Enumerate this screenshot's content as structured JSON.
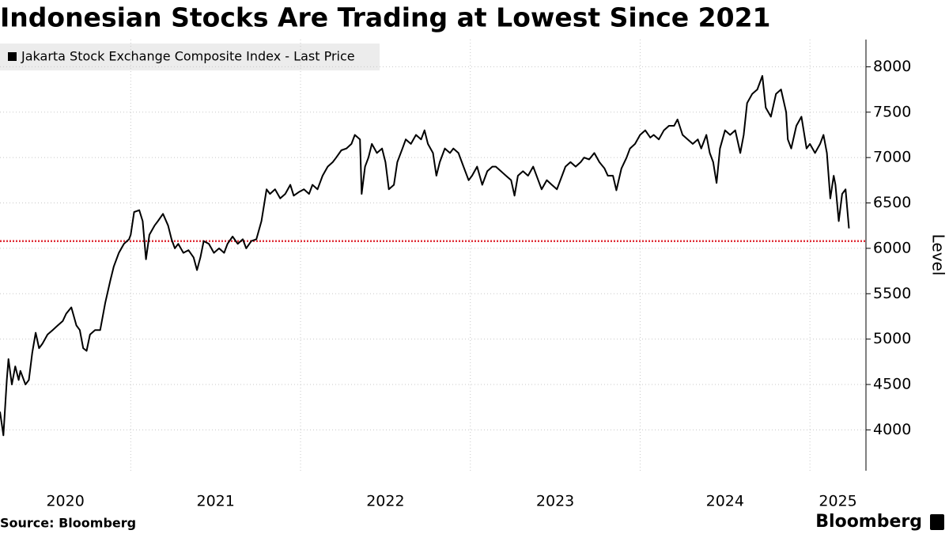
{
  "chart_data": {
    "type": "line",
    "title": "Indonesian Stocks Are Trading at Lowest Since 2021",
    "y_label": "Level",
    "source": "Source: Bloomberg",
    "logo": "Bloomberg",
    "x": [
      2020.23,
      2020.25,
      2020.27,
      2020.28,
      2020.3,
      2020.32,
      2020.34,
      2020.35,
      2020.38,
      2020.4,
      2020.42,
      2020.44,
      2020.46,
      2020.48,
      2020.51,
      2020.54,
      2020.57,
      2020.6,
      2020.62,
      2020.65,
      2020.68,
      2020.7,
      2020.72,
      2020.74,
      2020.76,
      2020.79,
      2020.82,
      2020.85,
      2020.88,
      2020.9,
      2020.93,
      2020.96,
      2020.99,
      2021.0,
      2021.02,
      2021.05,
      2021.07,
      2021.09,
      2021.11,
      2021.14,
      2021.16,
      2021.19,
      2021.22,
      2021.24,
      2021.26,
      2021.28,
      2021.31,
      2021.34,
      2021.37,
      2021.39,
      2021.41,
      2021.43,
      2021.46,
      2021.49,
      2021.52,
      2021.55,
      2021.57,
      2021.6,
      2021.63,
      2021.66,
      2021.68,
      2021.71,
      2021.74,
      2021.77,
      2021.8,
      2021.82,
      2021.85,
      2021.88,
      2021.91,
      2021.94,
      2021.96,
      2021.99,
      2022.02,
      2022.05,
      2022.07,
      2022.1,
      2022.13,
      2022.16,
      2022.19,
      2022.21,
      2022.24,
      2022.27,
      2022.3,
      2022.32,
      2022.35,
      2022.36,
      2022.38,
      2022.4,
      2022.42,
      2022.45,
      2022.48,
      2022.5,
      2022.52,
      2022.55,
      2022.57,
      2022.6,
      2022.62,
      2022.65,
      2022.68,
      2022.71,
      2022.73,
      2022.75,
      2022.78,
      2022.8,
      2022.82,
      2022.85,
      2022.88,
      2022.9,
      2022.93,
      2022.96,
      2022.99,
      2023.01,
      2023.04,
      2023.07,
      2023.1,
      2023.13,
      2023.15,
      2023.18,
      2023.21,
      2023.24,
      2023.26,
      2023.28,
      2023.31,
      2023.34,
      2023.37,
      2023.4,
      2023.42,
      2023.45,
      2023.48,
      2023.51,
      2023.54,
      2023.56,
      2023.59,
      2023.62,
      2023.65,
      2023.67,
      2023.7,
      2023.73,
      2023.76,
      2023.79,
      2023.81,
      2023.84,
      2023.86,
      2023.89,
      2023.92,
      2023.94,
      2023.97,
      2024.0,
      2024.03,
      2024.06,
      2024.08,
      2024.11,
      2024.14,
      2024.17,
      2024.2,
      2024.22,
      2024.25,
      2024.28,
      2024.31,
      2024.34,
      2024.36,
      2024.39,
      2024.41,
      2024.43,
      2024.45,
      2024.47,
      2024.5,
      2024.53,
      2024.56,
      2024.59,
      2024.61,
      2024.63,
      2024.66,
      2024.69,
      2024.72,
      2024.74,
      2024.77,
      2024.8,
      2024.83,
      2024.86,
      2024.87,
      2024.89,
      2024.92,
      2024.95,
      2024.98,
      2025.0,
      2025.03,
      2025.06,
      2025.08,
      2025.1,
      2025.12,
      2025.14,
      2025.15,
      2025.17,
      2025.19,
      2025.21,
      2025.23
    ],
    "series": [
      {
        "name": "Jakarta Stock Exchange Composite Index - Last Price",
        "color": "#000000",
        "values": [
          4200,
          3940,
          4550,
          4780,
          4500,
          4700,
          4550,
          4650,
          4500,
          4550,
          4850,
          5070,
          4900,
          4950,
          5050,
          5100,
          5150,
          5200,
          5280,
          5350,
          5150,
          5100,
          4900,
          4870,
          5050,
          5100,
          5100,
          5400,
          5650,
          5800,
          5950,
          6050,
          6100,
          6150,
          6400,
          6420,
          6300,
          5880,
          6150,
          6250,
          6300,
          6380,
          6250,
          6100,
          6000,
          6050,
          5950,
          5980,
          5900,
          5760,
          5900,
          6080,
          6050,
          5950,
          6000,
          5950,
          6050,
          6130,
          6050,
          6100,
          6000,
          6080,
          6100,
          6300,
          6650,
          6600,
          6650,
          6550,
          6600,
          6700,
          6580,
          6620,
          6650,
          6600,
          6700,
          6650,
          6800,
          6900,
          6950,
          7000,
          7080,
          7100,
          7150,
          7250,
          7200,
          6600,
          6900,
          7000,
          7150,
          7050,
          7100,
          6950,
          6650,
          6700,
          6950,
          7100,
          7200,
          7150,
          7250,
          7200,
          7300,
          7150,
          7050,
          6800,
          6950,
          7100,
          7050,
          7100,
          7050,
          6900,
          6750,
          6800,
          6900,
          6700,
          6850,
          6900,
          6900,
          6850,
          6800,
          6750,
          6580,
          6800,
          6850,
          6800,
          6900,
          6750,
          6650,
          6750,
          6700,
          6650,
          6800,
          6900,
          6950,
          6900,
          6950,
          7000,
          6980,
          7050,
          6950,
          6880,
          6800,
          6800,
          6640,
          6880,
          7000,
          7100,
          7150,
          7250,
          7300,
          7220,
          7250,
          7200,
          7300,
          7350,
          7350,
          7420,
          7250,
          7200,
          7150,
          7200,
          7100,
          7250,
          7050,
          6950,
          6720,
          7100,
          7300,
          7250,
          7300,
          7050,
          7250,
          7600,
          7700,
          7750,
          7900,
          7550,
          7450,
          7700,
          7750,
          7500,
          7200,
          7100,
          7350,
          7450,
          7100,
          7150,
          7050,
          7150,
          7250,
          7050,
          6550,
          6800,
          6700,
          6300,
          6600,
          6650,
          6220
        ]
      }
    ],
    "xlim": [
      2020.23,
      2025.33
    ],
    "xticks": [
      2020,
      2021,
      2022,
      2023,
      2024,
      2025
    ],
    "ylim": [
      3550,
      8300
    ],
    "yticks": [
      4000,
      4500,
      5000,
      5500,
      6000,
      6500,
      7000,
      7500,
      8000
    ],
    "grid": true,
    "reference_line": {
      "value": 6080,
      "color": "#e0303a"
    }
  }
}
